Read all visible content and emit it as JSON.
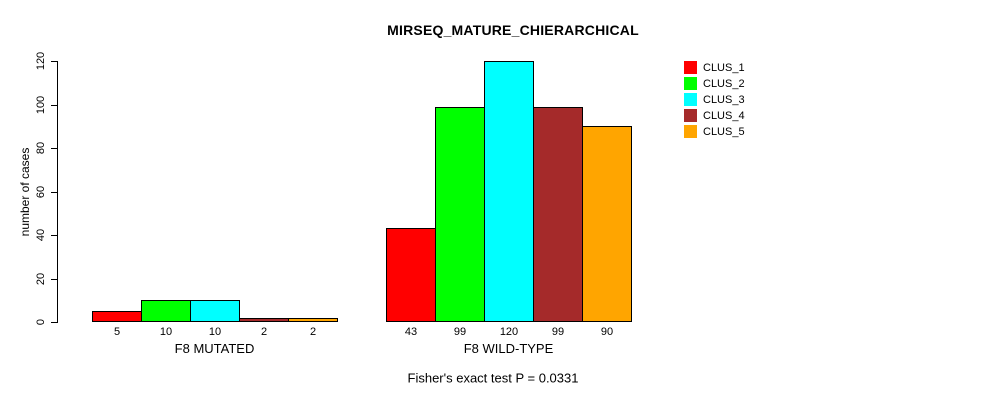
{
  "title": "MIRSEQ_MATURE_CHIERARCHICAL",
  "caption": "Fisher's exact test P = 0.0331",
  "chart_data": {
    "type": "bar",
    "title": "MIRSEQ_MATURE_CHIERARCHICAL",
    "xlabel": "",
    "ylabel": "number of cases",
    "ylim": [
      0,
      120
    ],
    "yticks": [
      0,
      20,
      40,
      60,
      80,
      100,
      120
    ],
    "grid": false,
    "legend_position": "right",
    "bar_value_labels": true,
    "categories": [
      "F8 MUTATED",
      "F8 WILD-TYPE"
    ],
    "series": [
      {
        "name": "CLUS_1",
        "color": "#FF0000",
        "values": [
          5,
          43
        ]
      },
      {
        "name": "CLUS_2",
        "color": "#00FF00",
        "values": [
          10,
          99
        ]
      },
      {
        "name": "CLUS_3",
        "color": "#00FFFF",
        "values": [
          10,
          120
        ]
      },
      {
        "name": "CLUS_4",
        "color": "#A52A2A",
        "values": [
          2,
          99
        ]
      },
      {
        "name": "CLUS_5",
        "color": "#FFA500",
        "values": [
          2,
          90
        ]
      }
    ],
    "annotation": "Fisher's exact test P = 0.0331"
  },
  "colors": {
    "background": "#FFFFFF",
    "axis": "#000000",
    "text": "#000000"
  }
}
